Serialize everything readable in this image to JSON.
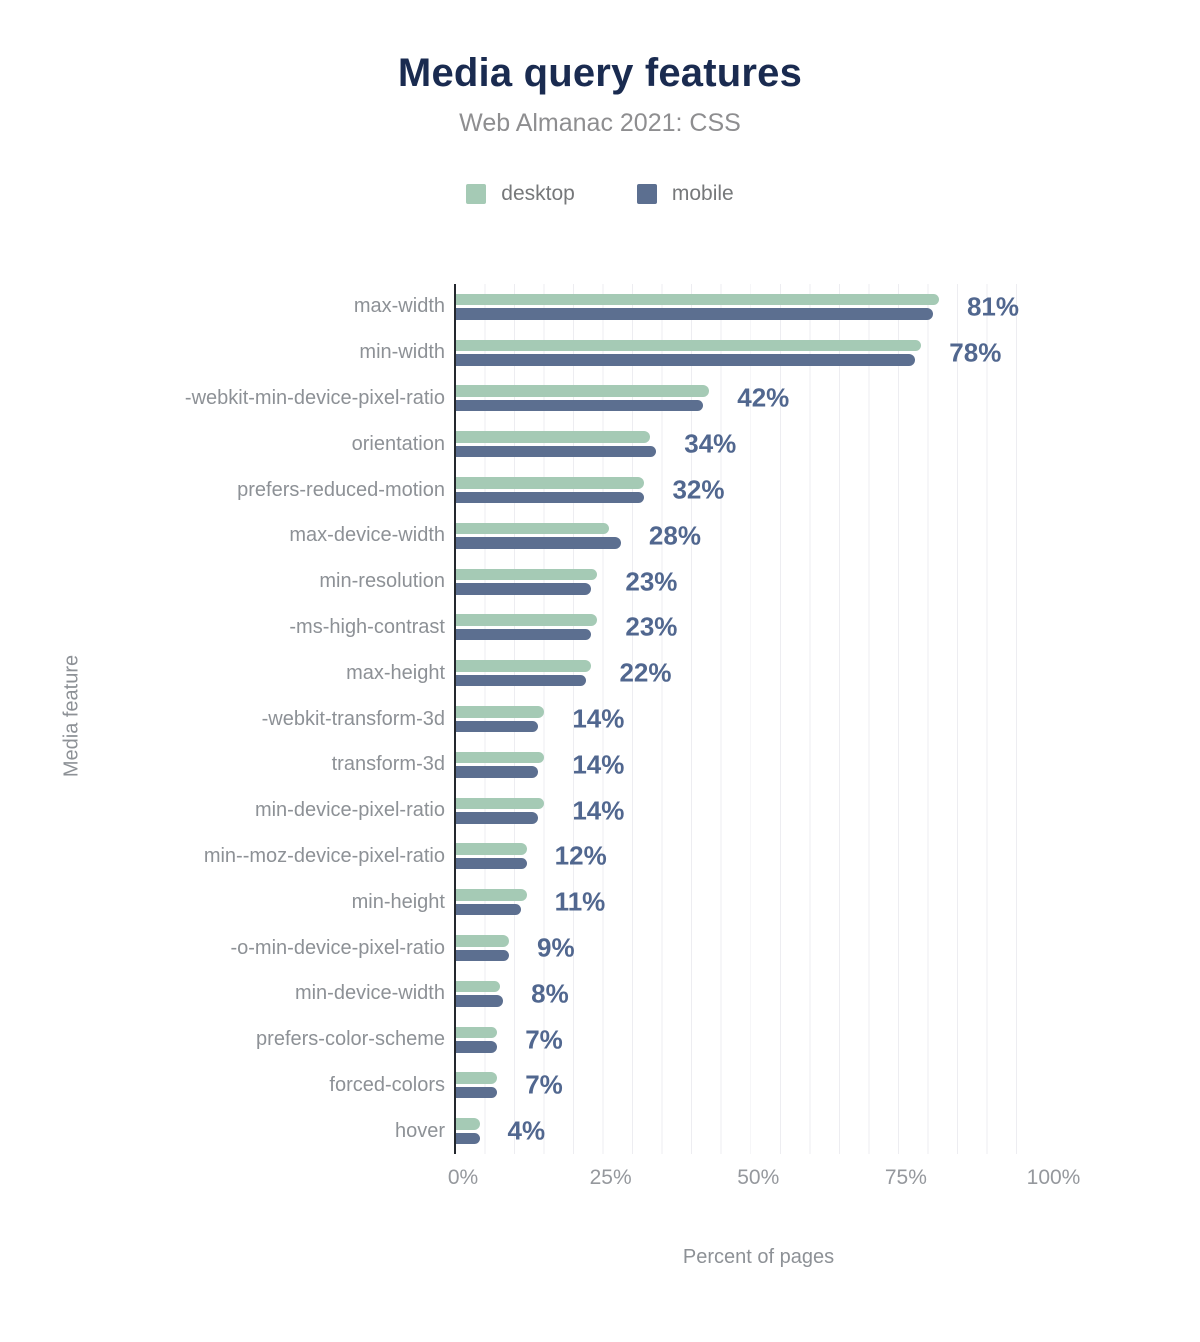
{
  "figure": {
    "title": "Media query features",
    "subtitle": "Web Almanac 2021: CSS"
  },
  "legend": {
    "items": [
      {
        "label": "desktop",
        "color": "#a5cab5"
      },
      {
        "label": "mobile",
        "color": "#5c6f90"
      }
    ]
  },
  "axes": {
    "x_title": "Percent of pages",
    "y_title": "Media feature"
  },
  "colors": {
    "desktop_bar": "#a5cab5",
    "mobile_bar": "#5c6f90",
    "value_label": "#51678f",
    "title": "#1a2b50",
    "subtitle": "#8e8e90",
    "axis_text": "#8d9196",
    "tick_text": "#95989d",
    "axis_line": "#24282e",
    "gridline": "#ededf1",
    "background": "#ffffff"
  },
  "chart_data": {
    "type": "bar",
    "orientation": "horizontal",
    "title": "Media query features",
    "subtitle": "Web Almanac 2021: CSS",
    "xlabel": "Percent of pages",
    "ylabel": "Media feature",
    "xlim": [
      0,
      100
    ],
    "x_tick_labels": [
      "0%",
      "25%",
      "50%",
      "75%",
      "100%"
    ],
    "x_tick_values": [
      0,
      25,
      50,
      75,
      100
    ],
    "grid": {
      "vertical": true,
      "interval_percent": 5
    },
    "legend_position": "top-center",
    "categories": [
      "max-width",
      "min-width",
      "-webkit-min-device-pixel-ratio",
      "orientation",
      "prefers-reduced-motion",
      "max-device-width",
      "min-resolution",
      "-ms-high-contrast",
      "max-height",
      "-webkit-transform-3d",
      "transform-3d",
      "min-device-pixel-ratio",
      "min--moz-device-pixel-ratio",
      "min-height",
      "-o-min-device-pixel-ratio",
      "min-device-width",
      "prefers-color-scheme",
      "forced-colors",
      "hover"
    ],
    "series": [
      {
        "name": "desktop",
        "color": "#a5cab5",
        "values": [
          82,
          79,
          43,
          33,
          32,
          26,
          24,
          24,
          23,
          15,
          15,
          15,
          12,
          12,
          9,
          7.5,
          7,
          7,
          4
        ]
      },
      {
        "name": "mobile",
        "color": "#5c6f90",
        "values": [
          81,
          78,
          42,
          34,
          32,
          28,
          23,
          23,
          22,
          14,
          14,
          14,
          12,
          11,
          9,
          8,
          7,
          7,
          4
        ]
      }
    ],
    "value_labels": {
      "source_series": "mobile",
      "text": [
        "81%",
        "78%",
        "42%",
        "34%",
        "32%",
        "28%",
        "23%",
        "23%",
        "22%",
        "14%",
        "14%",
        "14%",
        "12%",
        "11%",
        "9%",
        "8%",
        "7%",
        "7%",
        "4%"
      ]
    }
  }
}
